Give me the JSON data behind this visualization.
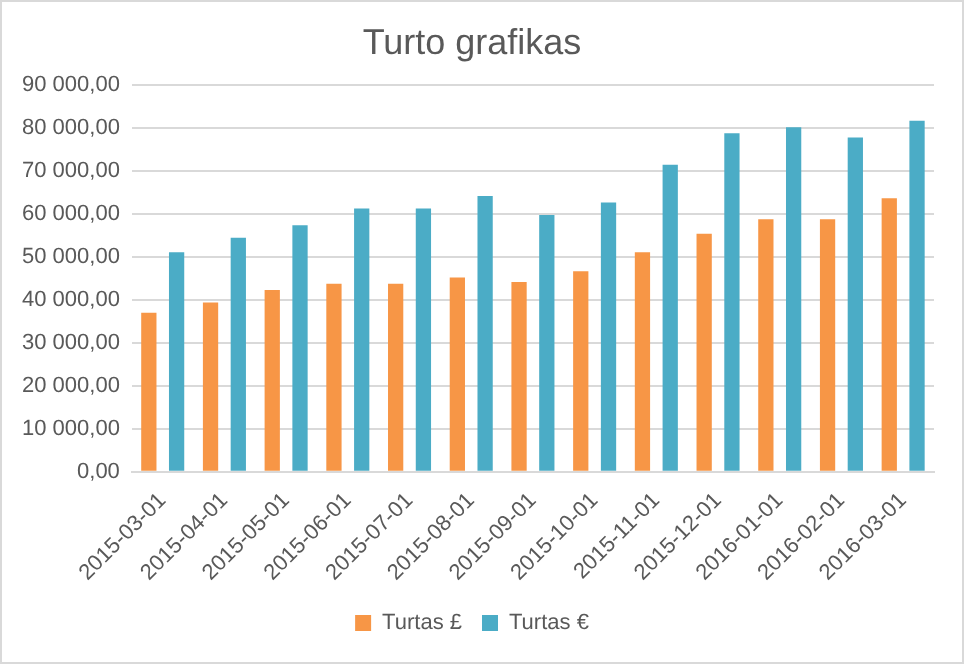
{
  "chart_data": {
    "type": "bar",
    "title": "Turto grafikas",
    "categories": [
      "2015-03-01",
      "2015-04-01",
      "2015-05-01",
      "2015-06-01",
      "2015-07-01",
      "2015-08-01",
      "2015-09-01",
      "2015-10-01",
      "2015-11-01",
      "2015-12-01",
      "2016-01-01",
      "2016-02-01",
      "2016-03-01"
    ],
    "series": [
      {
        "name": "Turtas £",
        "color": "#f79646",
        "values": [
          37000,
          39400,
          42300,
          43800,
          43800,
          45200,
          44200,
          46700,
          51100,
          55400,
          58800,
          58800,
          63700
        ]
      },
      {
        "name": "Turtas €",
        "color": "#4bacc6",
        "values": [
          51100,
          54500,
          57400,
          61300,
          61300,
          64200,
          59800,
          62700,
          71500,
          78800,
          80200,
          77800,
          81700
        ]
      }
    ],
    "ylim": [
      0,
      90000
    ],
    "yticks": [
      {
        "value": 0,
        "label": "0,00"
      },
      {
        "value": 10000,
        "label": "10 000,00"
      },
      {
        "value": 20000,
        "label": "20 000,00"
      },
      {
        "value": 30000,
        "label": "30 000,00"
      },
      {
        "value": 40000,
        "label": "40 000,00"
      },
      {
        "value": 50000,
        "label": "50 000,00"
      },
      {
        "value": 60000,
        "label": "60 000,00"
      },
      {
        "value": 70000,
        "label": "70 000,00"
      },
      {
        "value": 80000,
        "label": "80 000,00"
      },
      {
        "value": 90000,
        "label": "90 000,00"
      }
    ],
    "grid": "y",
    "legend": "bottom"
  }
}
